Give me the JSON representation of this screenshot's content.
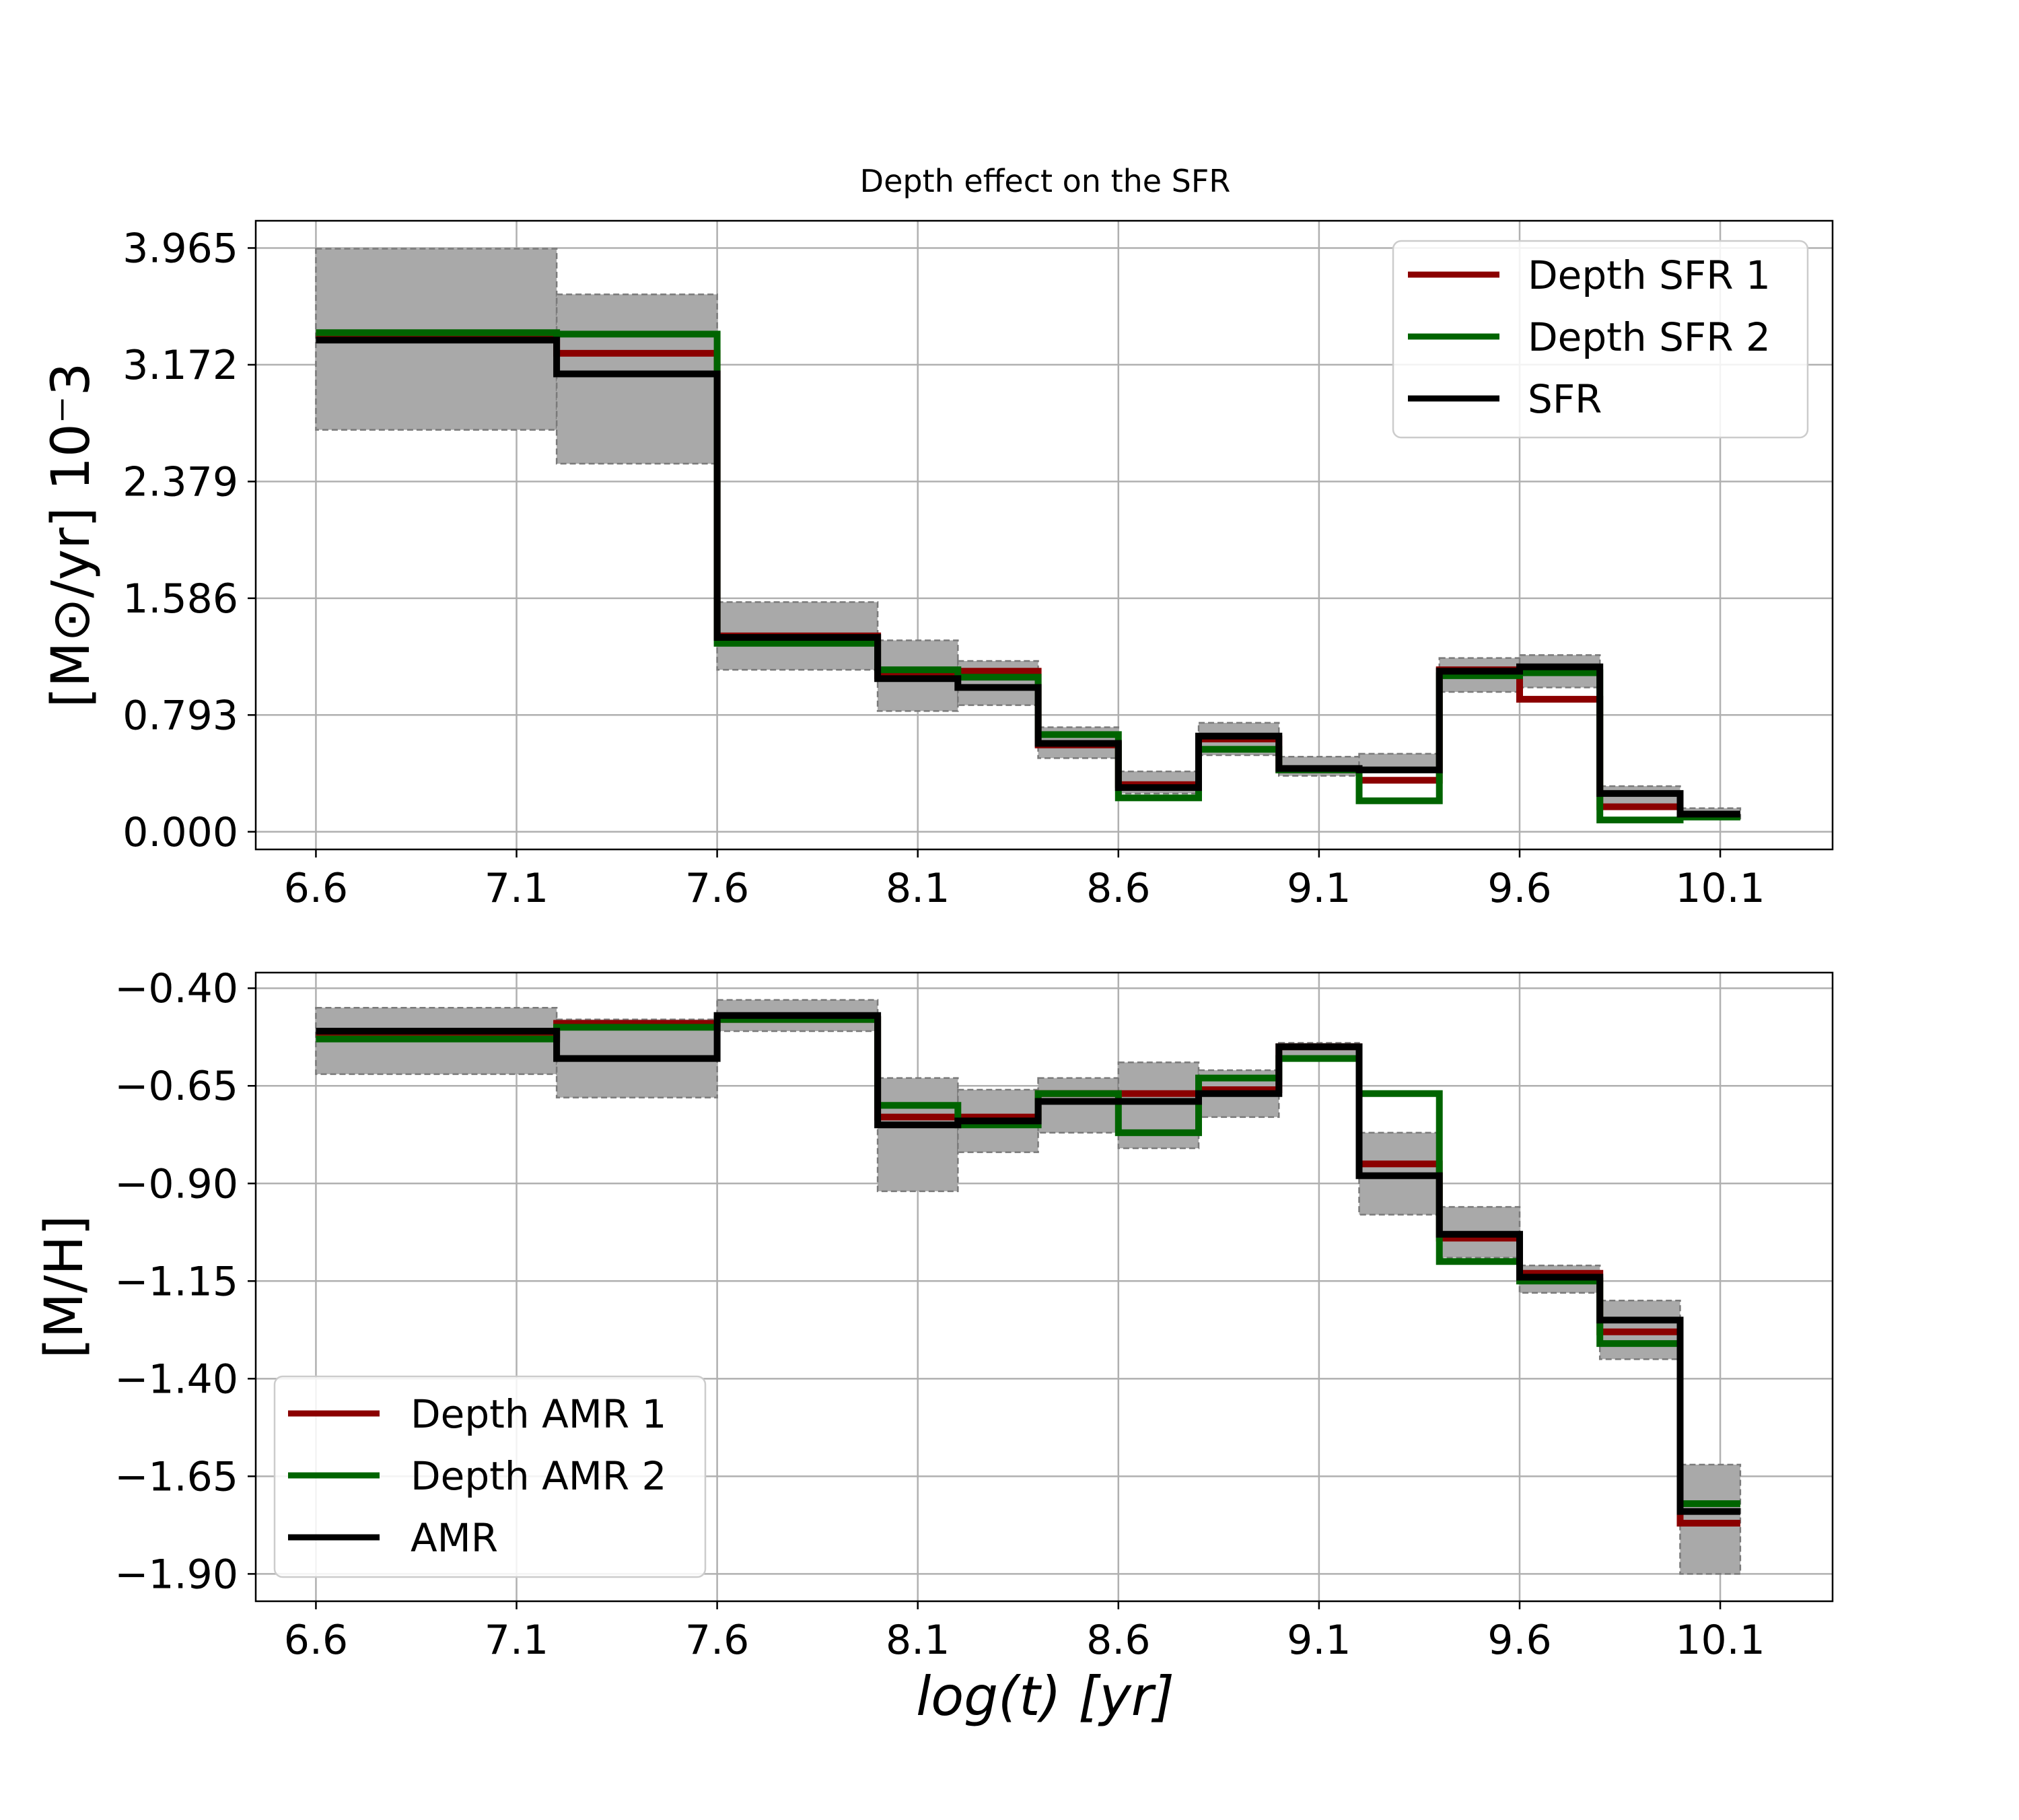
{
  "chart_data": [
    {
      "type": "line",
      "drawstyle": "steps",
      "title": "Depth effect on the SFR",
      "xlabel": "",
      "ylabel": "[M⊙/yr] 10⁻3",
      "xlim": [
        6.45,
        10.38
      ],
      "ylim": [
        -0.12,
        4.15
      ],
      "xticks": [
        "6.6",
        "7.1",
        "7.6",
        "8.1",
        "8.6",
        "9.1",
        "9.6",
        "10.1"
      ],
      "xtick_values": [
        6.6,
        7.1,
        7.6,
        8.1,
        8.6,
        9.1,
        9.6,
        10.1
      ],
      "yticks": [
        "0.000",
        "0.793",
        "1.586",
        "2.379",
        "3.172",
        "3.965"
      ],
      "ytick_values": [
        0,
        0.793,
        1.586,
        2.379,
        3.172,
        3.965
      ],
      "grid": true,
      "legend_position": "top-right",
      "bin_edges": [
        6.6,
        7.2,
        7.6,
        8.0,
        8.2,
        8.4,
        8.6,
        8.8,
        9.0,
        9.2,
        9.4,
        9.6,
        9.8,
        10.0,
        10.15
      ],
      "band": {
        "name": "uncertainty",
        "lower": [
          2.73,
          2.5,
          1.1,
          0.82,
          0.86,
          0.5,
          0.26,
          0.52,
          0.38,
          0.42,
          0.95,
          0.98,
          0.16,
          0.09
        ],
        "upper": [
          3.96,
          3.65,
          1.56,
          1.3,
          1.16,
          0.71,
          0.41,
          0.74,
          0.51,
          0.53,
          1.18,
          1.2,
          0.31,
          0.16
        ]
      },
      "series": [
        {
          "name": "Depth SFR 1",
          "color": "#8b0000",
          "values": [
            3.37,
            3.25,
            1.33,
            1.06,
            1.09,
            0.59,
            0.32,
            0.63,
            0.42,
            0.35,
            1.1,
            0.9,
            0.17,
            0.11
          ]
        },
        {
          "name": "Depth SFR 2",
          "color": "#006400",
          "values": [
            3.39,
            3.38,
            1.28,
            1.1,
            1.05,
            0.66,
            0.23,
            0.56,
            0.42,
            0.21,
            1.06,
            1.08,
            0.08,
            0.1
          ]
        },
        {
          "name": "SFR",
          "color": "#000000",
          "values": [
            3.34,
            3.11,
            1.32,
            1.04,
            0.98,
            0.6,
            0.3,
            0.65,
            0.43,
            0.42,
            1.09,
            1.12,
            0.26,
            0.12
          ]
        }
      ]
    },
    {
      "type": "line",
      "drawstyle": "steps",
      "title": "",
      "xlabel": "log(t) [yr]",
      "ylabel": "[M/H]",
      "xlim": [
        6.45,
        10.38
      ],
      "ylim": [
        -1.97,
        -0.36
      ],
      "xticks": [
        "6.6",
        "7.1",
        "7.6",
        "8.1",
        "8.6",
        "9.1",
        "9.6",
        "10.1"
      ],
      "xtick_values": [
        6.6,
        7.1,
        7.6,
        8.1,
        8.6,
        9.1,
        9.6,
        10.1
      ],
      "yticks": [
        "−0.40",
        "−0.65",
        "−0.90",
        "−1.15",
        "−1.40",
        "−1.65",
        "−1.90"
      ],
      "ytick_values": [
        -0.4,
        -0.65,
        -0.9,
        -1.15,
        -1.4,
        -1.65,
        -1.9
      ],
      "grid": true,
      "legend_position": "lower-left",
      "bin_edges": [
        6.6,
        7.2,
        7.6,
        8.0,
        8.2,
        8.4,
        8.6,
        8.8,
        9.0,
        9.2,
        9.4,
        9.6,
        9.8,
        10.0,
        10.15
      ],
      "band": {
        "name": "uncertainty",
        "lower": [
          -0.62,
          -0.68,
          -0.51,
          -0.92,
          -0.82,
          -0.77,
          -0.81,
          -0.73,
          -0.58,
          -0.98,
          -1.09,
          -1.18,
          -1.35,
          -1.9
        ],
        "upper": [
          -0.45,
          -0.48,
          -0.43,
          -0.63,
          -0.66,
          -0.63,
          -0.59,
          -0.61,
          -0.54,
          -0.77,
          -0.96,
          -1.11,
          -1.2,
          -1.62
        ]
      },
      "series": [
        {
          "name": "Depth AMR 1",
          "color": "#8b0000",
          "values": [
            -0.52,
            -0.49,
            -0.48,
            -0.73,
            -0.73,
            -0.67,
            -0.67,
            -0.66,
            -0.55,
            -0.85,
            -1.04,
            -1.13,
            -1.28,
            -1.77
          ]
        },
        {
          "name": "Depth AMR 2",
          "color": "#006400",
          "values": [
            -0.53,
            -0.5,
            -0.48,
            -0.7,
            -0.75,
            -0.67,
            -0.77,
            -0.63,
            -0.58,
            -0.67,
            -1.1,
            -1.15,
            -1.31,
            -1.72
          ]
        },
        {
          "name": "AMR",
          "color": "#000000",
          "values": [
            -0.51,
            -0.58,
            -0.47,
            -0.75,
            -0.74,
            -0.69,
            -0.69,
            -0.67,
            -0.55,
            -0.88,
            -1.03,
            -1.14,
            -1.25,
            -1.74
          ]
        }
      ]
    }
  ]
}
